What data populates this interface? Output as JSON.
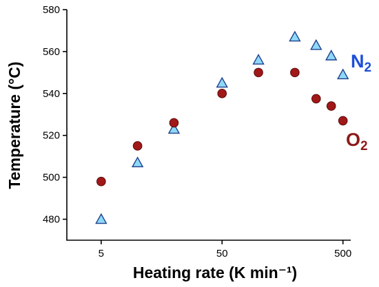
{
  "chart_data": {
    "type": "scatter",
    "xlabel": "Heating rate (K min⁻¹)",
    "ylabel": "Temperature (°C)",
    "xscale": "log",
    "xlim": [
      2.6,
      580
    ],
    "ylim": [
      470,
      580
    ],
    "xticks": [
      5,
      50,
      500
    ],
    "xtick_labels": [
      "5",
      "50",
      "500"
    ],
    "yticks": [
      480,
      500,
      520,
      540,
      560,
      580
    ],
    "ytick_labels": [
      "480",
      "500",
      "520",
      "540",
      "560",
      "580"
    ],
    "series": [
      {
        "name": "N",
        "subscript": "2",
        "marker": "triangle",
        "color": "#8ed8f8",
        "edge_color": "#1c3f8c",
        "label_color": "#1c4fd8",
        "points": [
          {
            "x": 5,
            "y": 480
          },
          {
            "x": 10,
            "y": 507
          },
          {
            "x": 20,
            "y": 523
          },
          {
            "x": 50,
            "y": 545
          },
          {
            "x": 100,
            "y": 556
          },
          {
            "x": 200,
            "y": 567
          },
          {
            "x": 300,
            "y": 563
          },
          {
            "x": 400,
            "y": 558
          },
          {
            "x": 500,
            "y": 549
          }
        ]
      },
      {
        "name": "O",
        "subscript": "2",
        "marker": "circle",
        "color": "#a01818",
        "edge_color": "#5a0a0a",
        "label_color": "#8b1a1a",
        "points": [
          {
            "x": 5,
            "y": 498
          },
          {
            "x": 10,
            "y": 515
          },
          {
            "x": 20,
            "y": 526
          },
          {
            "x": 50,
            "y": 540
          },
          {
            "x": 100,
            "y": 550
          },
          {
            "x": 200,
            "y": 550
          },
          {
            "x": 300,
            "y": 537.5
          },
          {
            "x": 400,
            "y": 534
          },
          {
            "x": 500,
            "y": 527
          }
        ]
      }
    ]
  }
}
